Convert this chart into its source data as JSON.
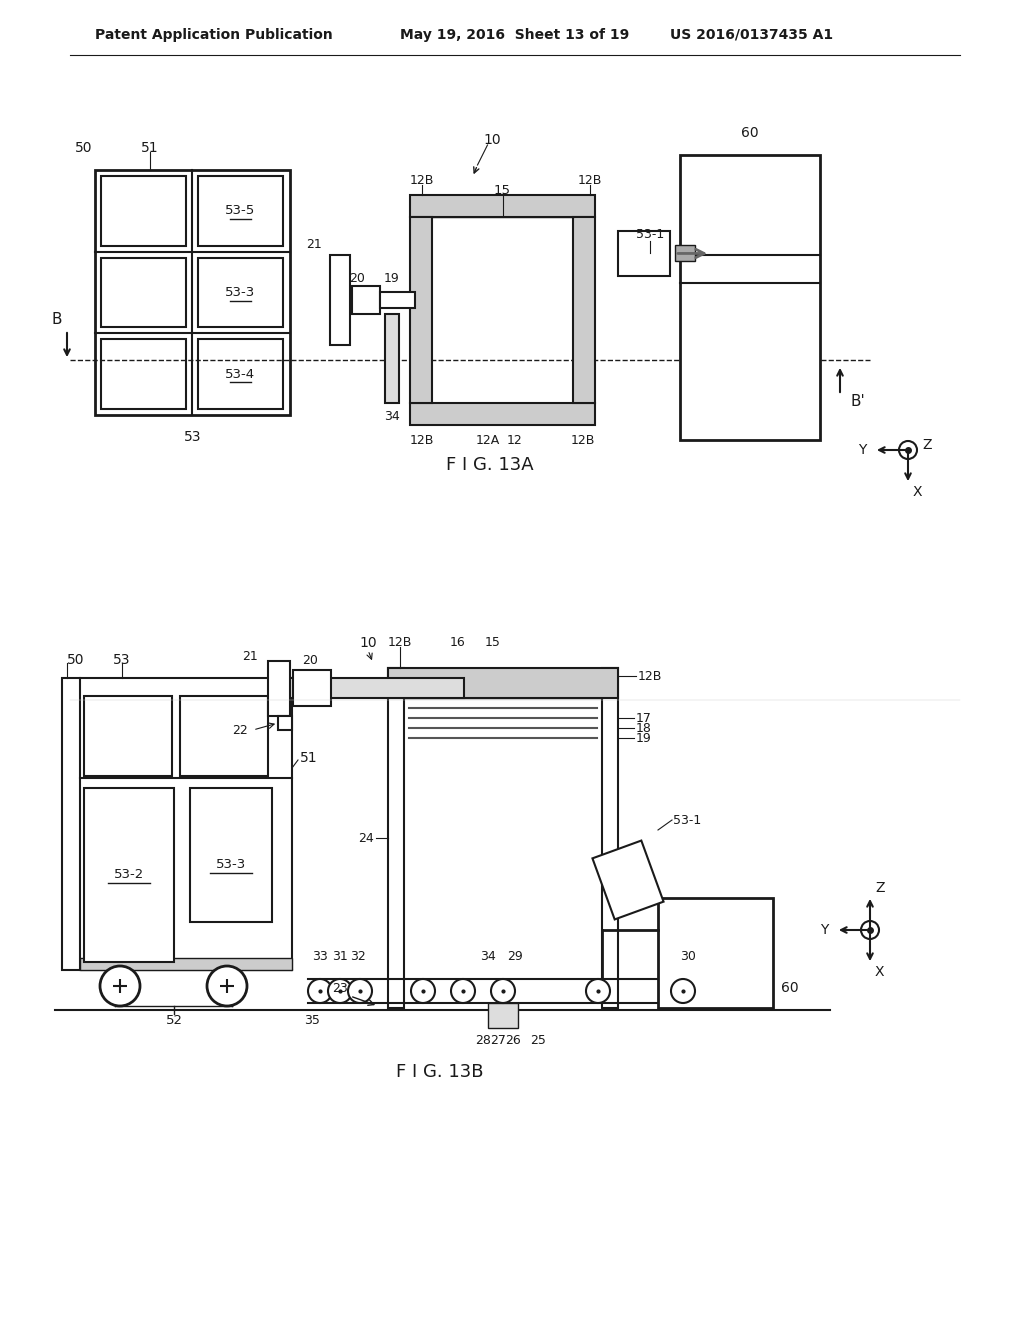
{
  "bg_color": "#ffffff",
  "line_color": "#1a1a1a",
  "header_text_left": "Patent Application Publication",
  "header_text_mid": "May 19, 2016  Sheet 13 of 19",
  "header_text_right": "US 2016/0137435 A1",
  "fig_label_A": "F I G. 13A",
  "fig_label_B": "F I G. 13B"
}
